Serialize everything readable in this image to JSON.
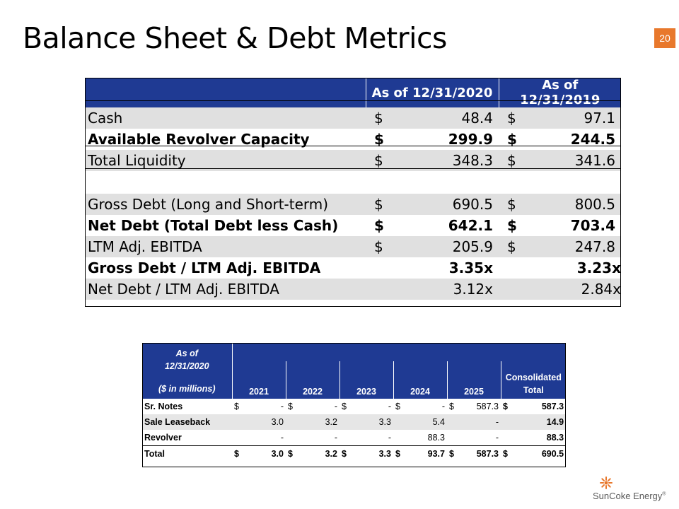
{
  "title": "Balance Sheet & Debt Metrics",
  "page_number": "20",
  "accent_color": "#1F3A93",
  "badge_color": "#E8782C",
  "liquidity_table": {
    "headers": [
      "As of 12/31/2020",
      "As of 12/31/2019"
    ],
    "rows": [
      {
        "label": "Cash",
        "c1": "$",
        "v1": "48.4",
        "c2": "$",
        "v2": "97.1"
      },
      {
        "label": "Available Revolver Capacity",
        "c1": "$",
        "v1": "299.9",
        "c2": "$",
        "v2": "244.5"
      },
      {
        "label": "Total Liquidity",
        "c1": "$",
        "v1": "348.3",
        "c2": "$",
        "v2": "341.6"
      },
      {
        "label": "Gross Debt (Long and Short-term)",
        "c1": "$",
        "v1": "690.5",
        "c2": "$",
        "v2": "800.5"
      },
      {
        "label": "Net Debt (Total Debt less Cash)",
        "c1": "$",
        "v1": "642.1",
        "c2": "$",
        "v2": "703.4"
      },
      {
        "label": "LTM Adj. EBITDA",
        "c1": "$",
        "v1": "205.9",
        "c2": "$",
        "v2": "247.8"
      },
      {
        "label": "Gross Debt /  LTM Adj. EBITDA",
        "v1": "3.35x",
        "v2": "3.23x"
      },
      {
        "label": "Net Debt / LTM Adj. EBITDA",
        "v1": "3.12x",
        "v2": "2.84x"
      }
    ]
  },
  "maturity_table": {
    "asof_line1": "As of",
    "asof_line2": "12/31/2020",
    "units": "($ in millions)",
    "years": [
      "2021",
      "2022",
      "2023",
      "2024",
      "2025"
    ],
    "total_header_line1": "Consolidated",
    "total_header_line2": "Total",
    "rows": [
      {
        "label": "Sr. Notes",
        "cells": [
          [
            "$",
            "-"
          ],
          [
            "$",
            "-"
          ],
          [
            "$",
            "-"
          ],
          [
            "$",
            "-"
          ],
          [
            "$",
            "587.3"
          ],
          [
            "$",
            "587.3"
          ]
        ]
      },
      {
        "label": "Sale Leaseback",
        "cells": [
          [
            "",
            "3.0"
          ],
          [
            "",
            "3.2"
          ],
          [
            "",
            "3.3"
          ],
          [
            "",
            "5.4"
          ],
          [
            "",
            "-"
          ],
          [
            "",
            "14.9"
          ]
        ]
      },
      {
        "label": "Revolver",
        "cells": [
          [
            "",
            "-"
          ],
          [
            "",
            "-"
          ],
          [
            "",
            "-"
          ],
          [
            "",
            "88.3"
          ],
          [
            "",
            "-"
          ],
          [
            "",
            "88.3"
          ]
        ]
      },
      {
        "label": "Total",
        "cells": [
          [
            "$",
            "3.0"
          ],
          [
            "$",
            "3.2"
          ],
          [
            "$",
            "3.3"
          ],
          [
            "$",
            "93.7"
          ],
          [
            "$",
            "587.3"
          ],
          [
            "$",
            "690.5"
          ]
        ]
      }
    ]
  },
  "logo": {
    "text": "SunCoke Energy",
    "mark": "®",
    "icon": "sun-icon"
  }
}
